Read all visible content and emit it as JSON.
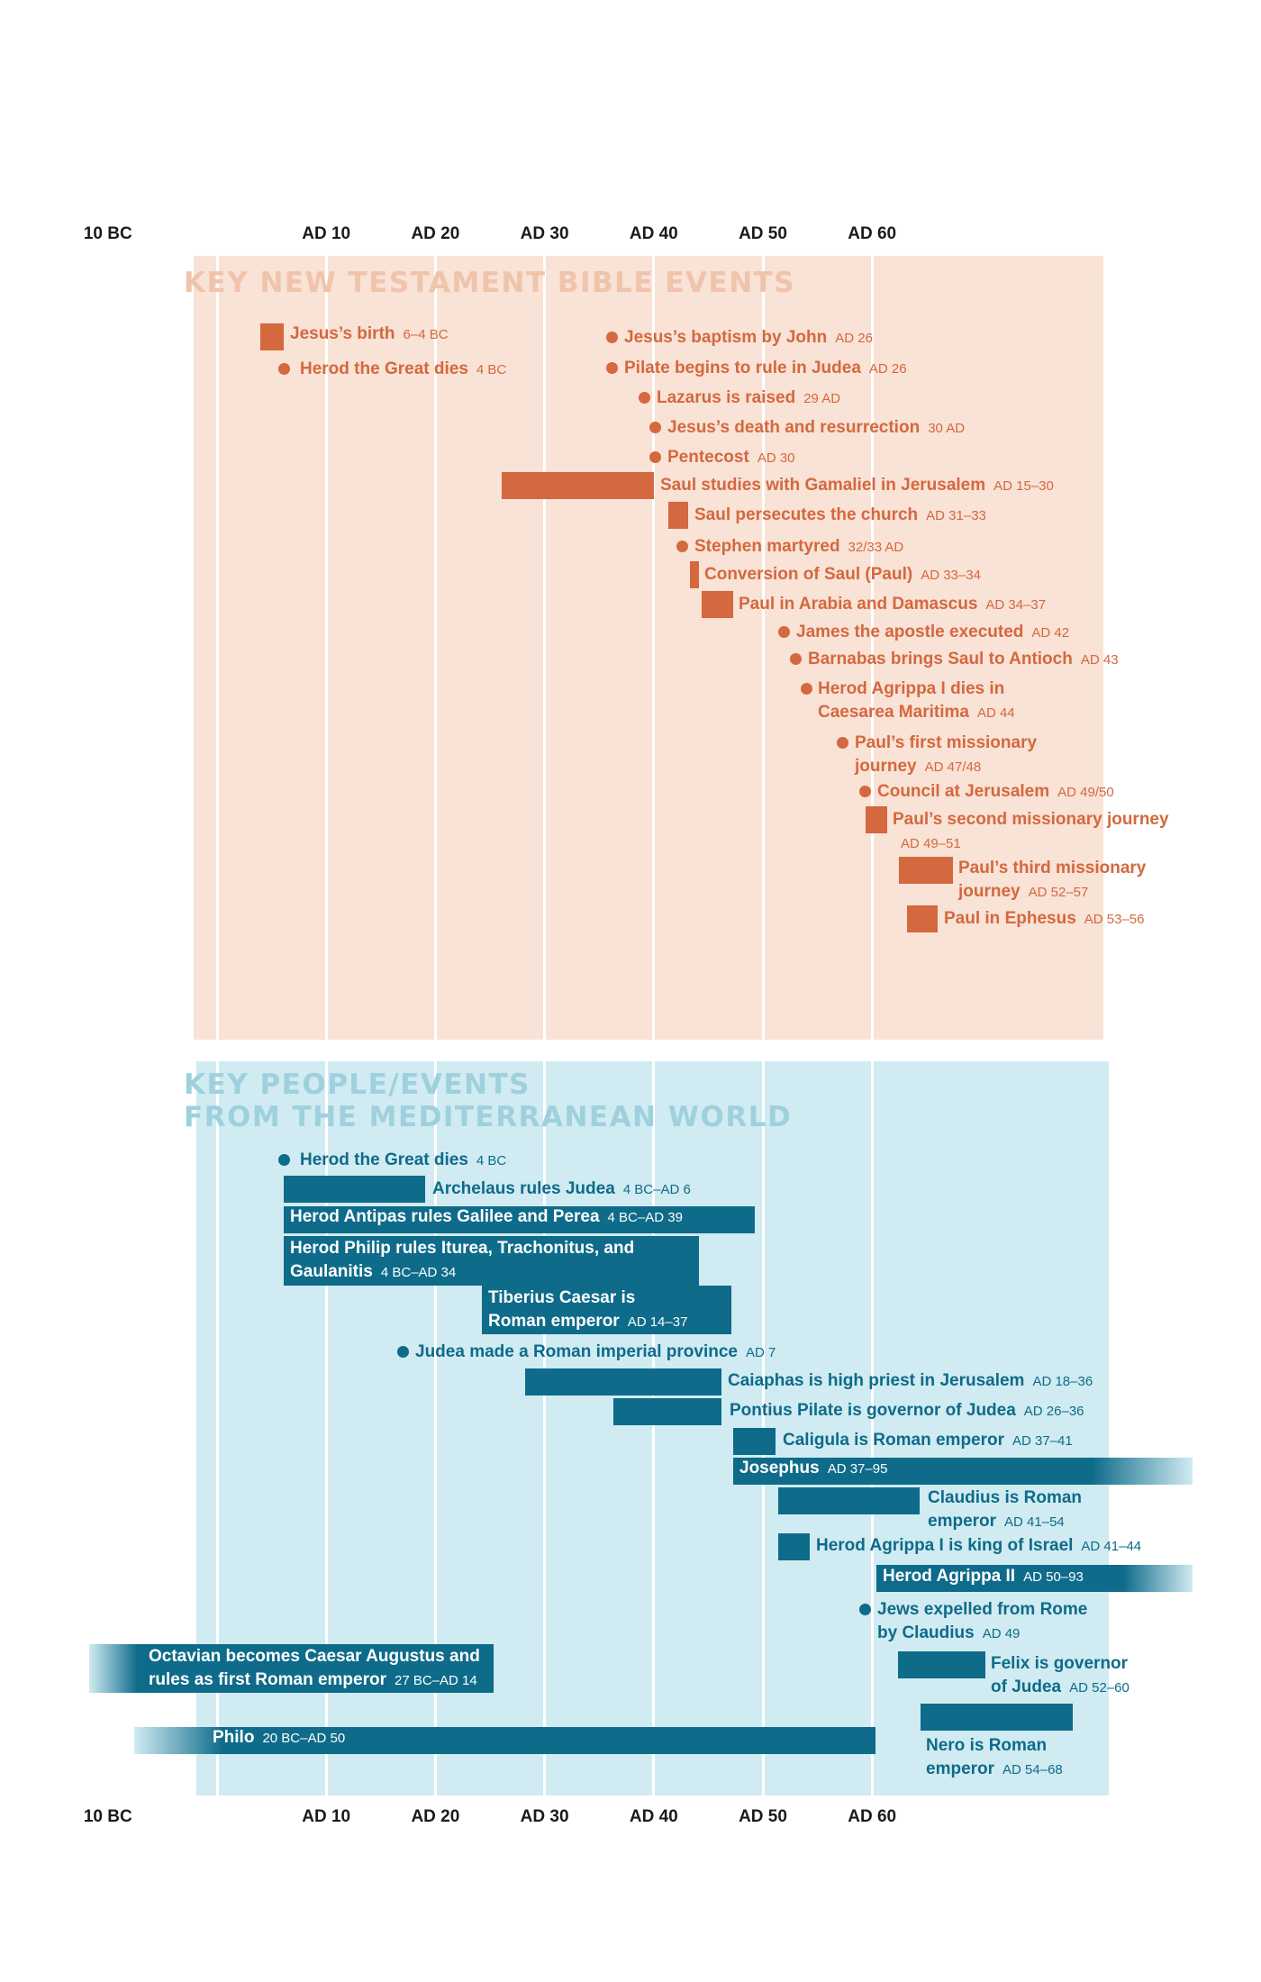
{
  "axis": {
    "ticks": [
      "10 BC",
      "AD 10",
      "AD 20",
      "AD 30",
      "AD 40",
      "AD 50",
      "AD 60"
    ],
    "tick_years": [
      -10,
      10,
      20,
      30,
      40,
      50,
      60
    ]
  },
  "colors": {
    "nt_bg": "#f9e2d6",
    "nt_accent": "#d4683e",
    "nt_title": "#f0c3ab",
    "med_bg": "#d0ebf1",
    "med_accent": "#0e6b8a",
    "med_title": "#9fd0de"
  },
  "sections": [
    {
      "id": "nt",
      "title": [
        "KEY NEW TESTAMENT BIBLE EVENTS"
      ],
      "events": [
        {
          "label": "Jesus’s birth",
          "date": "6–4 BC",
          "start": -6,
          "end": -4
        },
        {
          "label": "Herod the Great dies",
          "date": "4 BC",
          "start": -4
        },
        {
          "label": "Jesus’s baptism by John",
          "date": "AD 26",
          "start": 26
        },
        {
          "label": "Pilate begins to rule in Judea",
          "date": "AD 26",
          "start": 26
        },
        {
          "label": "Lazarus is raised",
          "date": "29 AD",
          "start": 29
        },
        {
          "label": "Jesus’s death and resurrection",
          "date": "30 AD",
          "start": 30
        },
        {
          "label": "Pentecost",
          "date": "AD 30",
          "start": 30
        },
        {
          "label": "Saul studies with Gamaliel in Jerusalem",
          "date": "AD 15–30",
          "start": 15,
          "end": 30
        },
        {
          "label": "Saul persecutes the church",
          "date": "AD 31–33",
          "start": 31,
          "end": 33
        },
        {
          "label": "Stephen martyred",
          "date": "32/33 AD",
          "start": 32
        },
        {
          "label": "Conversion of Saul (Paul)",
          "date": "AD 33–34",
          "start": 33,
          "end": 34
        },
        {
          "label": "Paul in Arabia and Damascus",
          "date": "AD 34–37",
          "start": 34,
          "end": 37
        },
        {
          "label": "James the apostle executed",
          "date": "AD 42",
          "start": 42
        },
        {
          "label": "Barnabas brings Saul to Antioch",
          "date": "AD 43",
          "start": 43
        },
        {
          "label": "Herod Agrippa I dies in Caesarea Maritima",
          "date": "AD 44",
          "start": 44
        },
        {
          "label": "Paul’s first missionary journey",
          "date": "AD 47/48",
          "start": 47
        },
        {
          "label": "Council at Jerusalem",
          "date": "AD 49/50",
          "start": 49
        },
        {
          "label": "Paul’s second missionary journey",
          "date": "AD 49–51",
          "start": 49,
          "end": 51
        },
        {
          "label": "Paul’s third missionary journey",
          "date": "AD 52–57",
          "start": 52,
          "end": 57
        },
        {
          "label": "Paul in Ephesus",
          "date": "AD 53–56",
          "start": 53,
          "end": 56
        }
      ]
    },
    {
      "id": "med",
      "title": [
        "KEY PEOPLE/EVENTS",
        "FROM THE MEDITERRANEAN WORLD"
      ],
      "events": [
        {
          "label": "Herod the Great dies",
          "date": "4 BC",
          "start": -4
        },
        {
          "label": "Archelaus rules Judea",
          "date": "4 BC–AD 6",
          "start": -4,
          "end": 6
        },
        {
          "label": "Herod Antipas rules Galilee and Perea",
          "date": "4 BC–AD 39",
          "start": -4,
          "end": 39
        },
        {
          "label": "Herod Philip rules Iturea, Trachonitus, and Gaulanitis",
          "date": "4 BC–AD 34",
          "start": -4,
          "end": 34
        },
        {
          "label": "Tiberius Caesar is Roman emperor",
          "date": "AD 14–37",
          "start": 14,
          "end": 37
        },
        {
          "label": "Judea made a Roman imperial province",
          "date": "AD 7",
          "start": 7
        },
        {
          "label": "Caiaphas is high priest in Jerusalem",
          "date": "AD 18–36",
          "start": 18,
          "end": 36
        },
        {
          "label": "Pontius Pilate is governor of Judea",
          "date": "AD 26–36",
          "start": 26,
          "end": 36
        },
        {
          "label": "Caligula is Roman emperor",
          "date": "AD 37–41",
          "start": 37,
          "end": 41
        },
        {
          "label": "Josephus",
          "date": "AD 37–95",
          "start": 37,
          "end": 95
        },
        {
          "label": "Claudius is Roman emperor",
          "date": "AD 41–54",
          "start": 41,
          "end": 54
        },
        {
          "label": "Herod Agrippa I is king of Israel",
          "date": "AD 41–44",
          "start": 41,
          "end": 44
        },
        {
          "label": "Herod Agrippa II",
          "date": "AD 50–93",
          "start": 50,
          "end": 93
        },
        {
          "label": "Jews expelled from Rome by Claudius",
          "date": "AD 49",
          "start": 49
        },
        {
          "label": "Octavian becomes Caesar Augustus and rules as first Roman emperor",
          "date": "27 BC–AD 14",
          "start": -27,
          "end": 14
        },
        {
          "label": "Felix is governor of Judea",
          "date": "AD 52–60",
          "start": 52,
          "end": 60
        },
        {
          "label": "Philo",
          "date": "20 BC–AD 50",
          "start": -20,
          "end": 50
        },
        {
          "label": "Nero is Roman emperor",
          "date": "AD 54–68",
          "start": 54,
          "end": 68
        }
      ]
    }
  ]
}
